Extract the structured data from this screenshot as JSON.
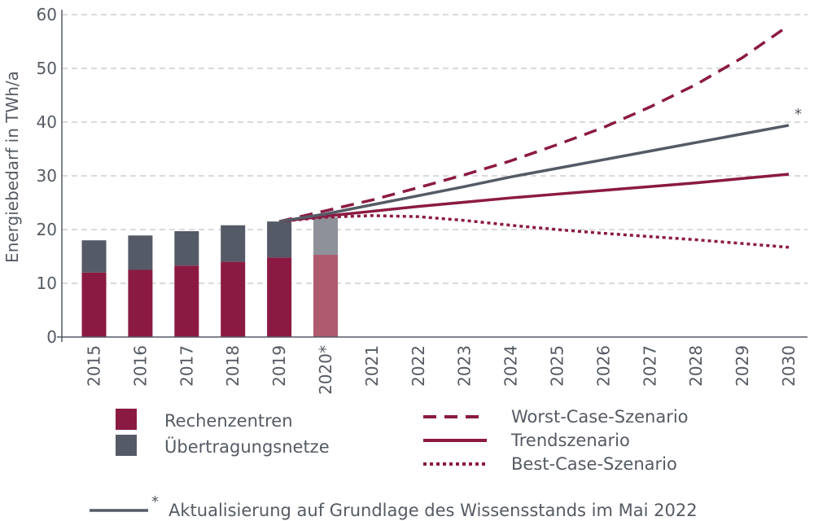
{
  "chart_data": {
    "type": "bar+line",
    "ylabel": "Energiebedarf in TWh/a",
    "ylim": [
      0,
      60
    ],
    "yticks": [
      0,
      10,
      20,
      30,
      40,
      50,
      60
    ],
    "grid": true,
    "categories": [
      "2015",
      "2016",
      "2017",
      "2018",
      "2019",
      "2020*",
      "2021",
      "2022",
      "2023",
      "2024",
      "2025",
      "2026",
      "2027",
      "2028",
      "2029",
      "2030"
    ],
    "bar_series": [
      {
        "name": "Rechenzentren",
        "color": "#8b1a42",
        "values": [
          12.0,
          12.5,
          13.3,
          14.0,
          14.8,
          15.3
        ]
      },
      {
        "name": "Übertragungsnetze",
        "color": "#555a67",
        "values": [
          6.0,
          6.4,
          6.4,
          6.8,
          6.7,
          7.0
        ]
      }
    ],
    "estimate_category": "2020*",
    "estimate_colors": {
      "Rechenzentren": "#b05a70",
      "Übertragungsnetze": "#8e9199"
    },
    "line_series": [
      {
        "name": "Worst-Case-Szenario",
        "style": "dashed",
        "color": "#8b1a42",
        "x": [
          "2019",
          "2020*",
          "2021",
          "2022",
          "2023",
          "2024",
          "2025",
          "2026",
          "2027",
          "2028",
          "2029",
          "2030"
        ],
        "values": [
          21.5,
          23.5,
          25.5,
          27.8,
          30.2,
          32.8,
          35.8,
          39.0,
          42.8,
          47.0,
          52.0,
          58.0
        ]
      },
      {
        "name": "Trendszenario",
        "style": "solid",
        "color": "#8b1a42",
        "x": [
          "2019",
          "2020*",
          "2021",
          "2022",
          "2023",
          "2024",
          "2025",
          "2026",
          "2027",
          "2028",
          "2029",
          "2030"
        ],
        "values": [
          21.5,
          22.5,
          23.4,
          24.3,
          25.1,
          25.9,
          26.6,
          27.3,
          28.0,
          28.7,
          29.5,
          30.3
        ]
      },
      {
        "name": "Best-Case-Szenario",
        "style": "dotted",
        "color": "#8b1a42",
        "x": [
          "2019",
          "2020*",
          "2021",
          "2022",
          "2023",
          "2024",
          "2025",
          "2026",
          "2027",
          "2028",
          "2029",
          "2030"
        ],
        "values": [
          21.5,
          22.3,
          22.6,
          22.4,
          21.7,
          20.8,
          20.0,
          19.3,
          18.7,
          18.1,
          17.4,
          16.7
        ]
      },
      {
        "name": "",
        "style": "solid",
        "color": "#555a67",
        "marker": "*",
        "x": [
          "2019",
          "2020*",
          "2021",
          "2022",
          "2023",
          "2024",
          "2025",
          "2026",
          "2027",
          "2028",
          "2029",
          "2030"
        ],
        "values": [
          21.5,
          22.9,
          24.6,
          26.3,
          28.0,
          29.8,
          31.4,
          33.0,
          34.6,
          36.2,
          37.8,
          39.4
        ]
      }
    ],
    "footnote": "Aktualisierung auf Grundlage des Wissensstands im Mai 2022",
    "footnote_marker": "*",
    "footnote_color": "#555a67"
  }
}
